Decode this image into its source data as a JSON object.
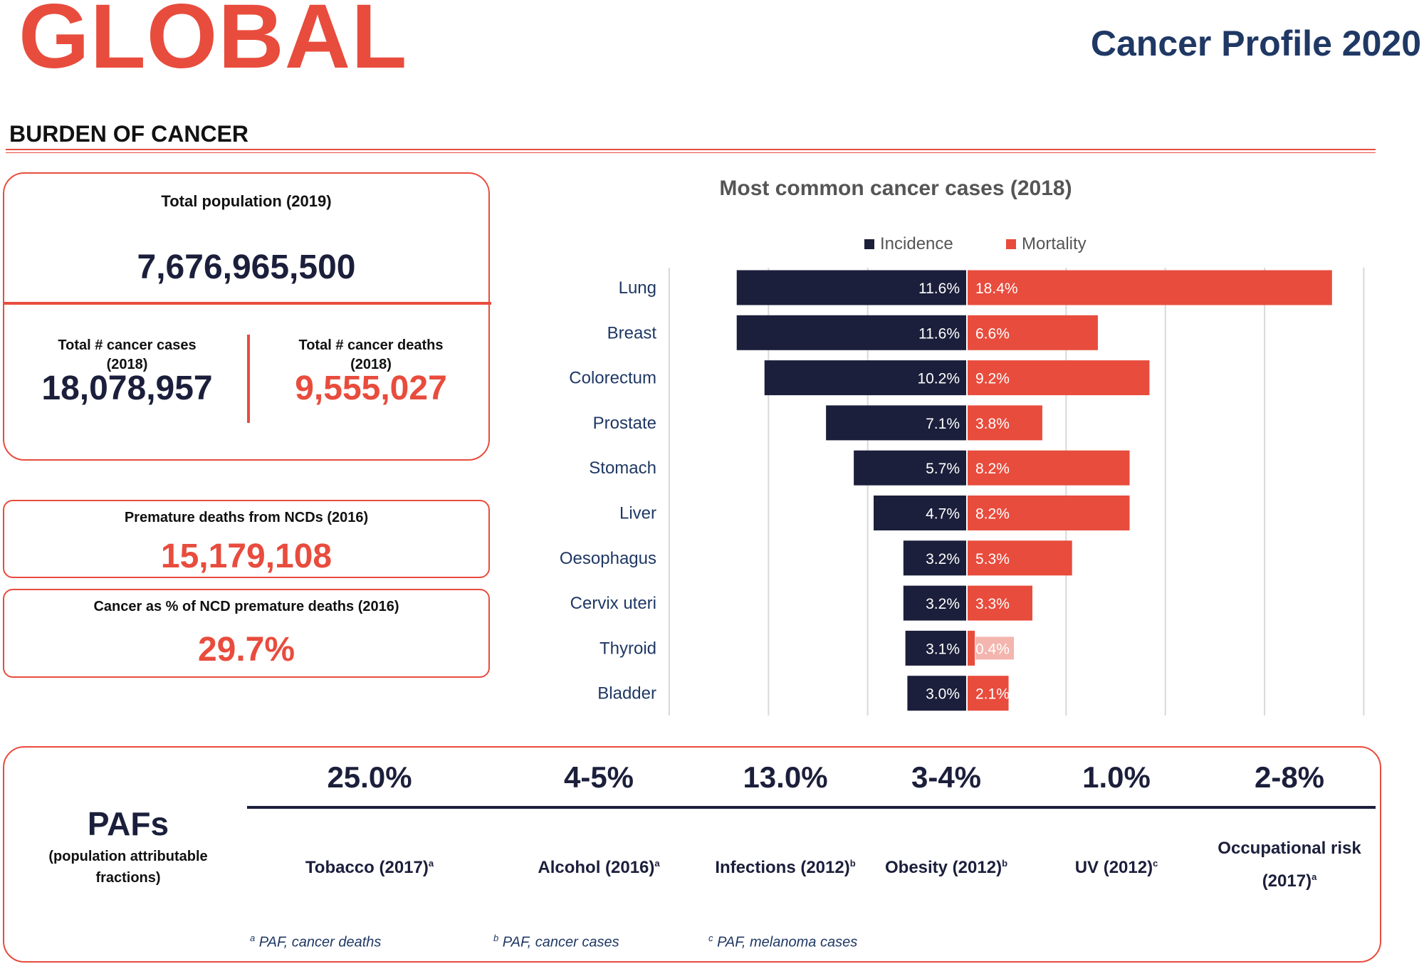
{
  "header": {
    "title": "GLOBAL",
    "subtitle": "Cancer Profile 2020",
    "section": "BURDEN OF CANCER"
  },
  "population": {
    "label": "Total population (2019)",
    "value": "7,676,965,500"
  },
  "cases": {
    "label1": "Total # cancer cases",
    "label2": "(2018)",
    "value": "18,078,957"
  },
  "deaths": {
    "label1": "Total # cancer deaths",
    "label2": "(2018)",
    "value": "9,555,027"
  },
  "premature": {
    "label": "Premature deaths from NCDs (2016)",
    "value": "15,179,108"
  },
  "cancer_pct": {
    "label": "Cancer as % of NCD premature deaths (2016)",
    "value": "29.7%"
  },
  "colors": {
    "red": "#e84c3d",
    "navy": "#1b1f3b"
  },
  "chart_data": {
    "type": "bar",
    "title": "Most common cancer cases (2018)",
    "orientation": "horizontal-diverging",
    "categories": [
      "Lung",
      "Breast",
      "Colorectum",
      "Prostate",
      "Stomach",
      "Liver",
      "Oesophagus",
      "Cervix uteri",
      "Thyroid",
      "Bladder"
    ],
    "series": [
      {
        "name": "Incidence",
        "color": "#1b1f3b",
        "values": [
          11.6,
          11.6,
          10.2,
          7.1,
          5.7,
          4.7,
          3.2,
          3.2,
          3.1,
          3.0
        ],
        "labels": [
          "11.6%",
          "11.6%",
          "10.2%",
          "7.1%",
          "5.7%",
          "4.7%",
          "3.2%",
          "3.2%",
          "3.1%",
          "3.0%"
        ]
      },
      {
        "name": "Mortality",
        "color": "#e84c3d",
        "values": [
          18.4,
          6.6,
          9.2,
          3.8,
          8.2,
          8.2,
          5.3,
          3.3,
          0.4,
          2.1
        ],
        "labels": [
          "18.4%",
          "6.6%",
          "9.2%",
          "3.8%",
          "8.2%",
          "8.2%",
          "5.3%",
          "3.3%",
          "0.4%",
          "2.1%"
        ]
      }
    ],
    "xlim": [
      -15,
      20
    ],
    "grid_step": 5,
    "grid": true,
    "legend": "top-center"
  },
  "pafs": {
    "title": "PAFs",
    "subtitle1": "(population attributable",
    "subtitle2": "fractions)",
    "items": [
      {
        "value": "25.0%",
        "label": "Tobacco (2017)",
        "sup": "a"
      },
      {
        "value": "4-5%",
        "label": "Alcohol (2016)",
        "sup": "a"
      },
      {
        "value": "13.0%",
        "label": "Infections (2012)",
        "sup": "b"
      },
      {
        "value": "3-4%",
        "label": "Obesity (2012)",
        "sup": "b"
      },
      {
        "value": "1.0%",
        "label": "UV (2012)",
        "sup": "c"
      },
      {
        "value": "2-8%",
        "label": "Occupational risk",
        "label2": "(2017)",
        "sup": "a"
      }
    ],
    "footnotes": [
      {
        "sup": "a",
        "text": "PAF, cancer deaths"
      },
      {
        "sup": "b",
        "text": "PAF, cancer cases"
      },
      {
        "sup": "c",
        "text": "PAF, melanoma cases"
      }
    ]
  }
}
